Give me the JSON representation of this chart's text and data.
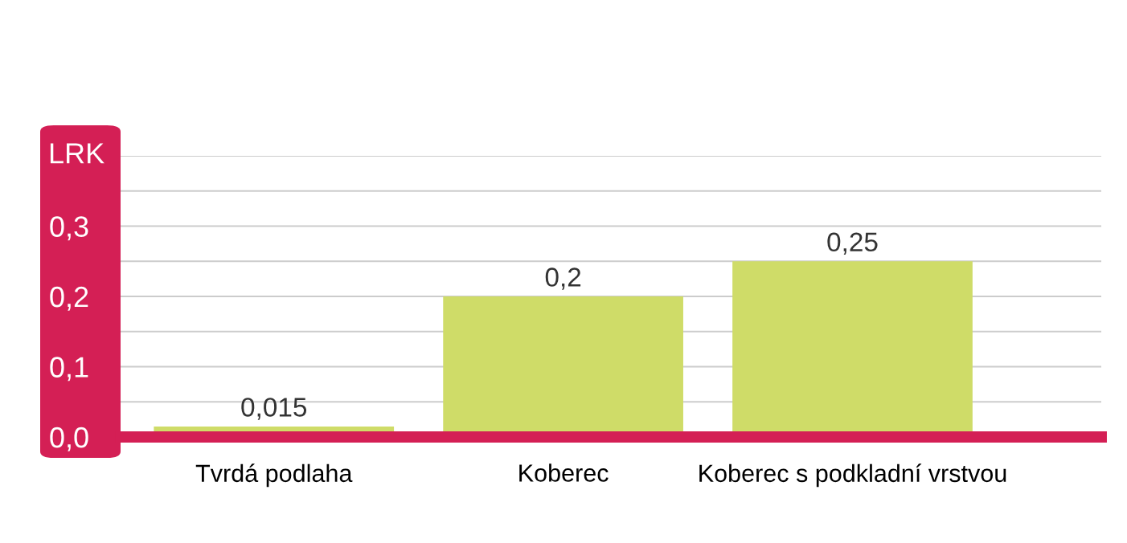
{
  "chart_data": {
    "type": "bar",
    "ylabel": "LRK",
    "categories": [
      "Tvrdá podlaha",
      "Koberec",
      "Koberec s podkladní vrstvou"
    ],
    "values": [
      0.015,
      0.2,
      0.25
    ],
    "value_labels": [
      "0,015",
      "0,2",
      "0,25"
    ],
    "color": "#cfdc68",
    "ylim": [
      0,
      0.4
    ],
    "yticks": [
      {
        "value": 0,
        "label": "0,0"
      },
      {
        "value": 0.05,
        "label": null
      },
      {
        "value": 0.1,
        "label": "0,1"
      },
      {
        "value": 0.15,
        "label": null
      },
      {
        "value": 0.2,
        "label": "0,2"
      },
      {
        "value": 0.25,
        "label": null
      },
      {
        "value": 0.3,
        "label": "0,3"
      },
      {
        "value": 0.35,
        "label": null
      },
      {
        "value": 0.4,
        "label": null
      }
    ],
    "grid": "y"
  }
}
